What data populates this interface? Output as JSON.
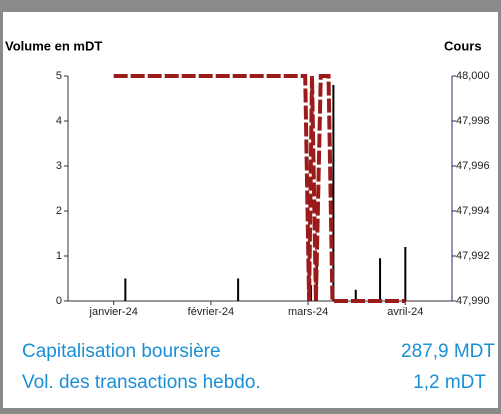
{
  "chart_data": {
    "type": "combo",
    "y_title": "Volume en mDT",
    "y2_title": "Cours",
    "xlim": [
      -0.47,
      3.48
    ],
    "xticks": [
      {
        "value": 0,
        "label": "janvier-24"
      },
      {
        "value": 1,
        "label": "février-24"
      },
      {
        "value": 2,
        "label": "mars-24"
      },
      {
        "value": 3,
        "label": "avril-24"
      }
    ],
    "ylim": [
      0,
      5
    ],
    "yticks": [
      0,
      1,
      2,
      3,
      4,
      5
    ],
    "y2lim": [
      47990,
      48000
    ],
    "y2ticks": [
      {
        "value": 47990,
        "label": "47,990"
      },
      {
        "value": 47992,
        "label": "47,992"
      },
      {
        "value": 47994,
        "label": "47,994"
      },
      {
        "value": 47996,
        "label": "47,996"
      },
      {
        "value": 47998,
        "label": "47,998"
      },
      {
        "value": 48000,
        "label": "48,000"
      }
    ],
    "series": [
      {
        "type": "bar",
        "color": "#000000",
        "x": [
          0.12,
          1.28,
          2.03,
          2.09,
          2.26,
          2.49,
          2.74,
          3.0
        ],
        "values": [
          0.5,
          0.5,
          0.35,
          0.95,
          4.8,
          0.25,
          0.95,
          1.2
        ]
      },
      {
        "type": "line",
        "axis": "y2",
        "color": "#9b1b1b",
        "x": [
          0,
          1.97,
          2.01,
          2.04,
          2.08,
          2.13,
          2.21,
          2.25,
          3.0
        ],
        "values": [
          48000,
          48000,
          47990,
          48000,
          47990,
          48000,
          48000,
          47990,
          47990
        ]
      }
    ]
  },
  "summary": {
    "rows": [
      [
        "Capitalisation boursière",
        "287,9 MDT"
      ],
      [
        "Vol. des transactions hebdo.",
        "1,2 mDT"
      ]
    ]
  }
}
